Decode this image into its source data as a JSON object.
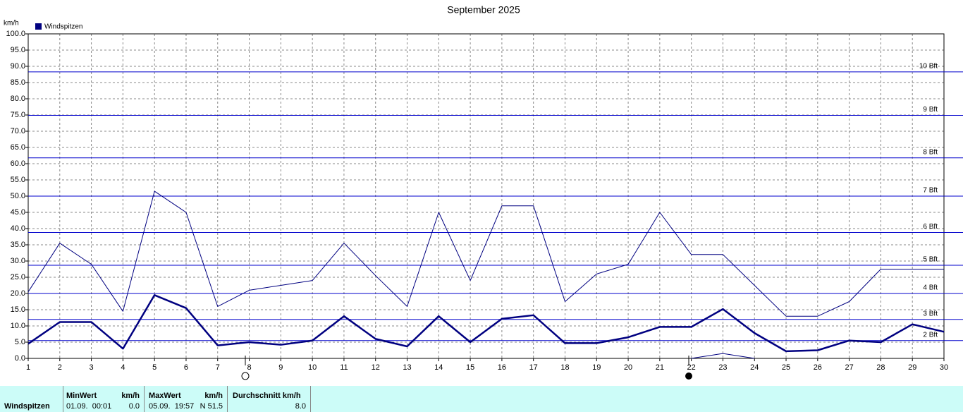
{
  "chart_data": {
    "type": "line",
    "title": "September 2025",
    "y_label": "km/h",
    "x": [
      1,
      2,
      3,
      4,
      5,
      6,
      7,
      8,
      9,
      10,
      11,
      12,
      13,
      14,
      15,
      16,
      17,
      18,
      19,
      20,
      21,
      22,
      23,
      24,
      25,
      26,
      27,
      28,
      29,
      30
    ],
    "xlim": [
      1,
      30
    ],
    "xticks": [
      1,
      2,
      3,
      4,
      5,
      6,
      7,
      8,
      9,
      10,
      11,
      12,
      13,
      14,
      15,
      16,
      17,
      18,
      19,
      20,
      21,
      22,
      23,
      24,
      25,
      26,
      27,
      28,
      29,
      30
    ],
    "ylim": [
      0,
      100
    ],
    "yticks": [
      {
        "value": 0,
        "label": "0.0"
      },
      {
        "value": 5,
        "label": "5.0"
      },
      {
        "value": 10,
        "label": "10.0"
      },
      {
        "value": 15,
        "label": "15.0"
      },
      {
        "value": 20,
        "label": "20.0"
      },
      {
        "value": 25,
        "label": "25.0"
      },
      {
        "value": 30,
        "label": "30.0"
      },
      {
        "value": 35,
        "label": "35.0"
      },
      {
        "value": 40,
        "label": "40.0"
      },
      {
        "value": 45,
        "label": "45.0"
      },
      {
        "value": 50,
        "label": "50.0"
      },
      {
        "value": 55,
        "label": "55.0"
      },
      {
        "value": 60,
        "label": "60.0"
      },
      {
        "value": 65,
        "label": "65.0"
      },
      {
        "value": 70,
        "label": "70.0"
      },
      {
        "value": 75,
        "label": "75.0"
      },
      {
        "value": 80,
        "label": "80.0"
      },
      {
        "value": 85,
        "label": "85.0"
      },
      {
        "value": 90,
        "label": "90.0"
      },
      {
        "value": 95,
        "label": "95.0"
      },
      {
        "value": 100,
        "label": "100.0"
      }
    ],
    "grid": true,
    "legend": "top-left",
    "reference_lines": [
      {
        "value": 5.5,
        "label": "2 Bft"
      },
      {
        "value": 12,
        "label": "3 Bft"
      },
      {
        "value": 20,
        "label": "4 Bft"
      },
      {
        "value": 28.7,
        "label": "5 Bft"
      },
      {
        "value": 38.8,
        "label": "6 Bft"
      },
      {
        "value": 50,
        "label": "7 Bft"
      },
      {
        "value": 61.8,
        "label": "8 Bft"
      },
      {
        "value": 74.9,
        "label": "9 Bft"
      },
      {
        "value": 88.3,
        "label": "10 Bft"
      }
    ],
    "reference_color": "#0000cc",
    "series": [
      {
        "name": "Windspitzen",
        "color": "#000080",
        "width": 1,
        "values": [
          20.5,
          35.5,
          29,
          14.5,
          51.5,
          45,
          16,
          21,
          22.5,
          24,
          35.5,
          25.5,
          16,
          45,
          24,
          47,
          47,
          17.5,
          26,
          29,
          45,
          32,
          32,
          22.5,
          13,
          13,
          17.5,
          27.5,
          27.5,
          27.5
        ]
      },
      {
        "color": "#000080",
        "width": 2.5,
        "values": [
          4.5,
          11.2,
          11.2,
          3,
          19.5,
          15.5,
          4,
          5,
          4.2,
          5.5,
          13,
          6,
          3.7,
          13,
          5,
          12.2,
          13.3,
          4.7,
          4.7,
          6.5,
          9.7,
          9.7,
          15.2,
          7.8,
          2.2,
          2.5,
          5.5,
          5,
          10.5,
          8.2
        ]
      },
      {
        "color": "#000080",
        "width": 1,
        "values": [
          null,
          null,
          null,
          null,
          null,
          null,
          null,
          null,
          null,
          null,
          null,
          null,
          null,
          null,
          null,
          null,
          null,
          null,
          null,
          null,
          null,
          0,
          1.5,
          0,
          null,
          null,
          null,
          null,
          null,
          null
        ]
      }
    ]
  },
  "stats_table": {
    "row_label": "Windspitzen",
    "min": {
      "header": "MinWert",
      "unit": "km/h",
      "time": "01.09.  00:01",
      "value": "0.0"
    },
    "max": {
      "header": "MaxWert",
      "unit": "km/h",
      "time": "05.09.  19:57",
      "value": "N 51.5"
    },
    "avg": {
      "header": "Durchschnitt km/h",
      "value": "8.0"
    }
  }
}
